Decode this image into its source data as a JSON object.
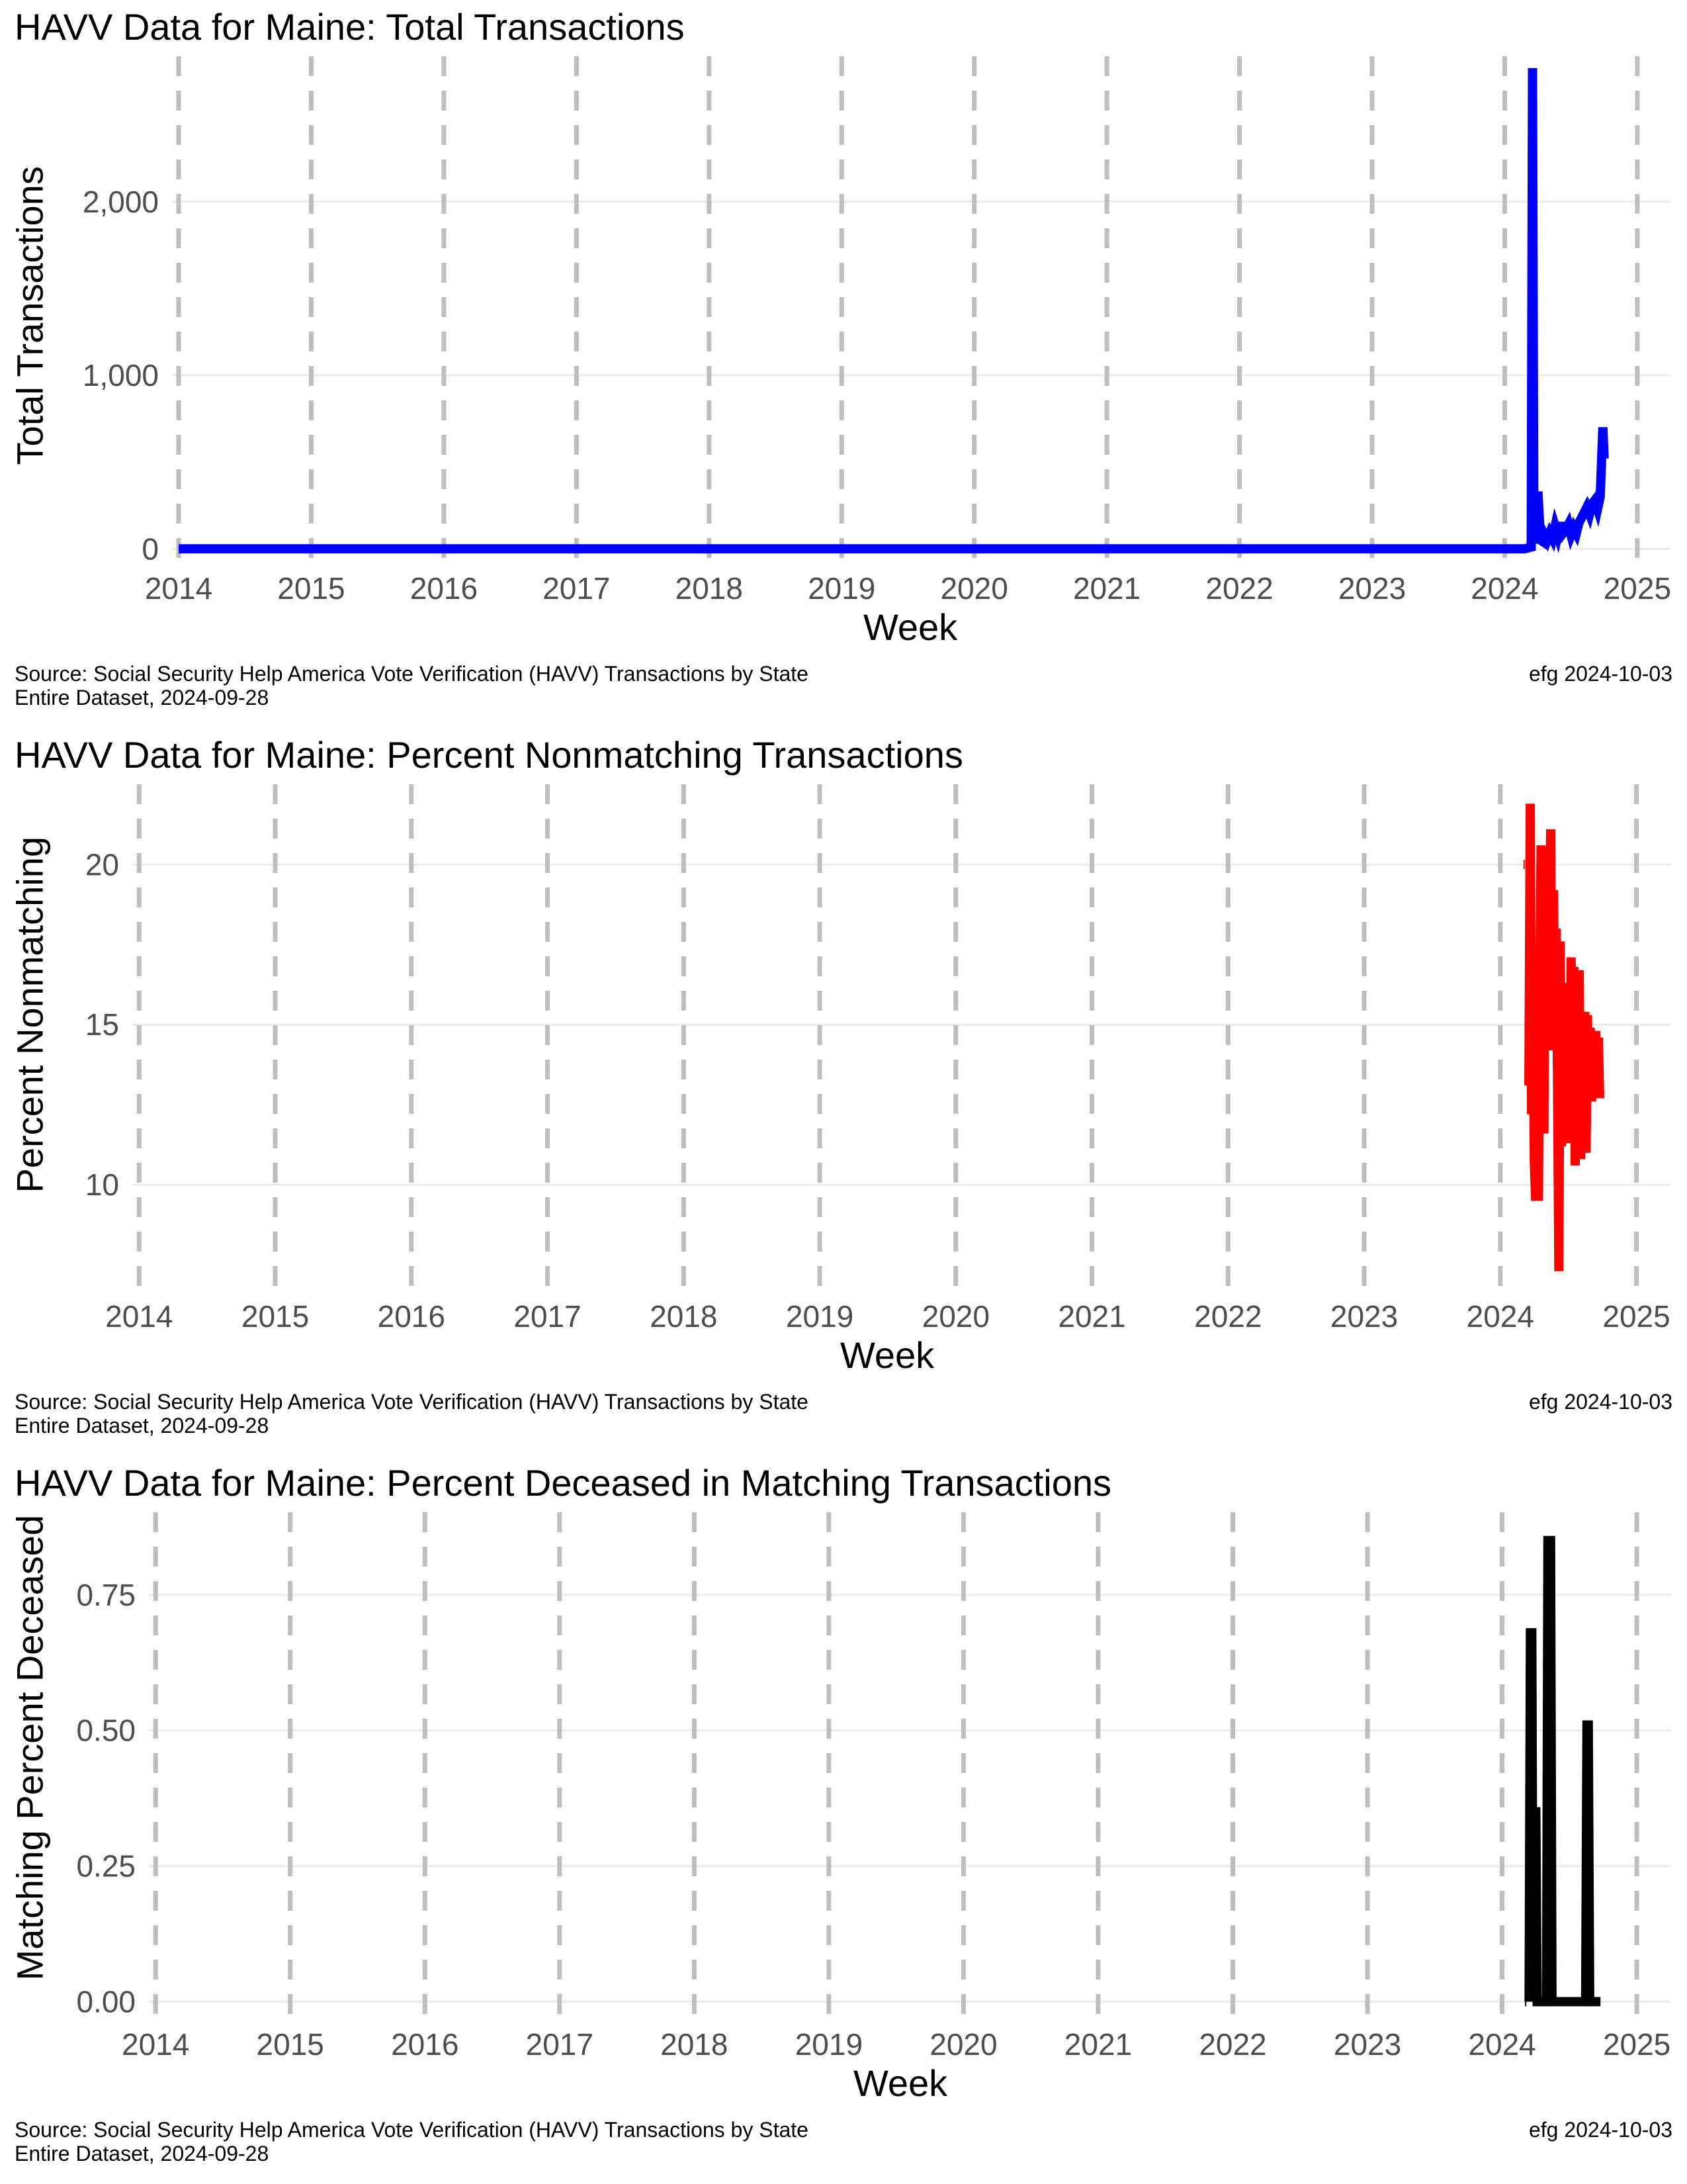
{
  "caption": {
    "source": "Source:  Social Security Help America Vote Verification (HAVV) Transactions by State",
    "dataset": "Entire Dataset, 2024-09-28",
    "credit": "efg 2024-10-03"
  },
  "chart_data": [
    {
      "type": "line",
      "title": "HAVV Data for Maine:  Total Transactions",
      "xlabel": "Week",
      "ylabel": "Total Transactions",
      "color": "#0000ff",
      "xlim": [
        2013.95,
        2025.25
      ],
      "ylim": [
        -60,
        2800
      ],
      "yticks": [
        0,
        1000,
        2000
      ],
      "ytick_labels": [
        "0",
        "1,000",
        "2,000"
      ],
      "xticks": [
        2014,
        2015,
        2016,
        2017,
        2018,
        2019,
        2020,
        2021,
        2022,
        2023,
        2024,
        2025
      ],
      "grid": "horizontal",
      "year_markers": "dashed-gray",
      "series": [
        {
          "x": [
            2014.0,
            2024.15,
            2024.2,
            2024.21,
            2024.22,
            2024.23,
            2024.24,
            2024.25,
            2024.27,
            2024.29,
            2024.3,
            2024.32,
            2024.34,
            2024.36,
            2024.38,
            2024.4,
            2024.42,
            2024.44,
            2024.46,
            2024.48,
            2024.5,
            2024.52,
            2024.54,
            2024.56,
            2024.58,
            2024.6,
            2024.62,
            2024.64,
            2024.66,
            2024.68,
            2024.7,
            2024.72,
            2024.73,
            2024.74,
            2024.75
          ],
          "y": [
            0,
            0,
            10,
            2770,
            50,
            250,
            30,
            330,
            50,
            40,
            80,
            50,
            90,
            60,
            130,
            80,
            150,
            90,
            110,
            140,
            80,
            120,
            90,
            150,
            180,
            210,
            240,
            200,
            260,
            280,
            230,
            300,
            500,
            700,
            520
          ]
        }
      ]
    },
    {
      "type": "line",
      "title": "HAVV Data for Maine:  Percent Nonmatching Transactions",
      "xlabel": "Week",
      "ylabel": "Percent Nonmatching",
      "color": "#ff0000",
      "xlim": [
        2013.95,
        2025.25
      ],
      "ylim": [
        6.8,
        22.3
      ],
      "yticks": [
        10,
        15,
        20
      ],
      "ytick_labels": [
        "10",
        "15",
        "20"
      ],
      "xticks": [
        2014,
        2015,
        2016,
        2017,
        2018,
        2019,
        2020,
        2021,
        2022,
        2023,
        2024,
        2025
      ],
      "grid": "horizontal",
      "year_markers": "dashed-gray",
      "series": [
        {
          "segments": [
            {
              "x": [
                2024.17,
                2024.18
              ],
              "y": [
                20.0,
                20.0
              ]
            },
            {
              "x": [
                2024.21,
                2024.22,
                2024.23,
                2024.24,
                2024.25,
                2024.26,
                2024.27,
                2024.28,
                2024.29,
                2024.3,
                2024.31,
                2024.32,
                2024.33,
                2024.34,
                2024.35,
                2024.36,
                2024.37,
                2024.38,
                2024.39,
                2024.4,
                2024.41,
                2024.42,
                2024.43,
                2024.44,
                2024.45,
                2024.46,
                2024.47,
                2024.48,
                2024.49,
                2024.5,
                2024.51,
                2024.52,
                2024.53,
                2024.54,
                2024.55,
                2024.56,
                2024.57,
                2024.58,
                2024.59,
                2024.6,
                2024.61,
                2024.62,
                2024.63,
                2024.64,
                2024.65,
                2024.66,
                2024.67,
                2024.68,
                2024.69,
                2024.7,
                2024.71,
                2024.72,
                2024.73
              ],
              "y": [
                13.1,
                21.9,
                12.2,
                16.6,
                10.7,
                9.5,
                13.5,
                9.5,
                16.0,
                20.6,
                14.5,
                11.6,
                20.4,
                15.5,
                20.5,
                14.2,
                21.1,
                14.2,
                19.2,
                15.5,
                18.0,
                13.6,
                7.3,
                17.6,
                11.2,
                16.0,
                11.5,
                15.0,
                11.3,
                16.3,
                11.8,
                17.1,
                12.3,
                16.8,
                10.6,
                15.0,
                11.7,
                16.7,
                10.8,
                14.3,
                11.0,
                15.4,
                11.0,
                15.3,
                12.7,
                14.9,
                12.6,
                14.7,
                12.9,
                14.8,
                12.8,
                14.6,
                12.7
              ]
            }
          ]
        }
      ]
    },
    {
      "type": "line",
      "title": "HAVV Data for Maine:  Percent Deceased in Matching Transactions",
      "xlabel": "Week",
      "ylabel": "Matching Percent Deceased",
      "color": "#000000",
      "xlim": [
        2013.95,
        2025.25
      ],
      "ylim": [
        -0.025,
        0.89
      ],
      "yticks": [
        0.0,
        0.25,
        0.5,
        0.75
      ],
      "ytick_labels": [
        "0.00",
        "0.25",
        "0.50",
        "0.75"
      ],
      "xticks": [
        2014,
        2015,
        2016,
        2017,
        2018,
        2019,
        2020,
        2021,
        2022,
        2023,
        2024,
        2025
      ],
      "grid": "horizontal",
      "year_markers": "dashed-gray",
      "series": [
        {
          "segments": [
            {
              "x": [
                2024.17,
                2024.18
              ],
              "y": [
                0.0,
                0.0
              ]
            },
            {
              "x": [
                2024.2,
                2024.21,
                2024.22,
                2024.23,
                2024.24,
                2024.25,
                2024.26,
                2024.33,
                2024.34,
                2024.35,
                2024.36,
                2024.37,
                2024.38,
                2024.62,
                2024.63,
                2024.64,
                2024.65,
                2024.73
              ],
              "y": [
                0.0,
                0.68,
                0.68,
                0.0,
                0.35,
                0.35,
                0.0,
                0.0,
                0.85,
                0.85,
                0.85,
                0.0,
                0.0,
                0.0,
                0.51,
                0.51,
                0.0,
                0.0
              ]
            }
          ]
        }
      ]
    }
  ]
}
